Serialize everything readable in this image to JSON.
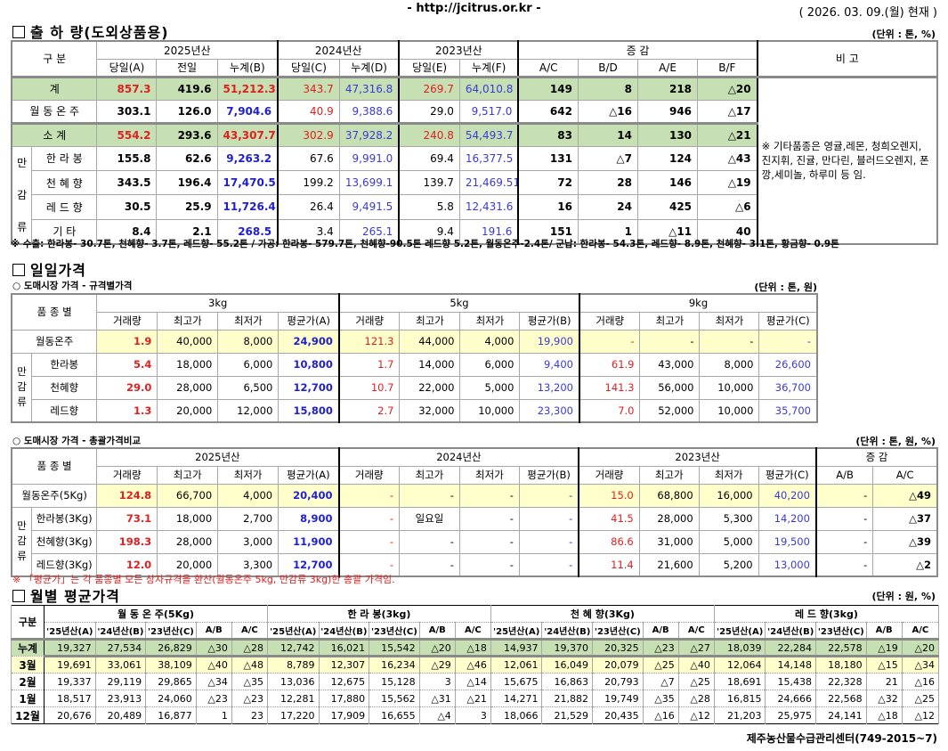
{
  "header": {
    "url": "- http://jcitrus.or.kr -",
    "date": "( 2026. 03. 09.(월) 현재 )"
  },
  "shipment": {
    "title": "출 하 량(도외상품용)",
    "unit": "(단위 : 톤, %)",
    "col_gubun": "구     분",
    "years": [
      "2025년산",
      "2024년산",
      "2023년산"
    ],
    "change_header": "증     감",
    "remarks_header": "비 고",
    "subheaders": [
      "당일(A)",
      "전일",
      "누계(B)",
      "당일(C)",
      "누계(D)",
      "당일(E)",
      "누계(F)",
      "A/C",
      "B/D",
      "A/E",
      "B/F"
    ],
    "side_group": "만감류",
    "rows": [
      {
        "label": "계",
        "values": [
          "857.3",
          "419.6",
          "51,212.3",
          "343.7",
          "47,316.8",
          "269.7",
          "64,010.8",
          "149",
          "8",
          "218",
          "△20"
        ]
      },
      {
        "label": "월 동 온 주",
        "values": [
          "303.1",
          "126.0",
          "7,904.6",
          "40.9",
          "9,388.6",
          "29.0",
          "9,517.0",
          "642",
          "△16",
          "946",
          "△17"
        ]
      },
      {
        "label": "소    계",
        "values": [
          "554.2",
          "293.6",
          "43,307.7",
          "302.9",
          "37,928.2",
          "240.8",
          "54,493.7",
          "83",
          "14",
          "130",
          "△21"
        ]
      },
      {
        "label": "한 라 봉",
        "values": [
          "155.8",
          "62.6",
          "9,263.2",
          "67.6",
          "9,991.0",
          "69.4",
          "16,377.5",
          "131",
          "△7",
          "124",
          "△43"
        ]
      },
      {
        "label": "천 혜 향",
        "values": [
          "343.5",
          "196.4",
          "17,470.5",
          "199.2",
          "13,699.1",
          "139.7",
          "21,469.51",
          "72",
          "28",
          "146",
          "△19"
        ]
      },
      {
        "label": "레 드 향",
        "values": [
          "30.5",
          "25.9",
          "11,726.4",
          "26.4",
          "9,491.5",
          "5.8",
          "12,431.6",
          "16",
          "24",
          "425",
          "△6"
        ]
      },
      {
        "label": "기      타",
        "values": [
          "8.4",
          "2.1",
          "268.5",
          "3.4",
          "265.1",
          "9.4",
          "191.6",
          "151",
          "1",
          "△11",
          "40"
        ]
      }
    ],
    "remarks": "※ 기타품종은 영귤,레몬, 청희오렌지, 진지휘, 진귤, 만다린, 블러드오렌지, 폰깡,세미놀, 하루미 등 임.",
    "footnote": "※ 수출: 한라봉- 30.7톤, 천혜향- 3.7톤, 레드향- 55.2톤 / 가공: 한라봉- 579.7톤, 천혜향-90.5톤 레드향 5.2톤, 월동온주-2.4톤/  군납: 한라봉- 54.3톤, 레드향- 8.9톤, 천혜향- 3.1톤, 황금향- 0.9톤"
  },
  "daily": {
    "title": "일일가격",
    "spec_table": {
      "subtitle": "○ 도매시장 가격 - 규격별가격",
      "unit": "(단위 : 톤, 원)",
      "col_variety": "품 종 별",
      "groups": [
        "3kg",
        "5kg",
        "9kg"
      ],
      "subheaders": [
        "거래량",
        "최고가",
        "최저가",
        "평균가(A)",
        "거래량",
        "최고가",
        "최저가",
        "평균가(B)",
        "거래량",
        "최고가",
        "최저가",
        "평균가(C)"
      ],
      "side_group": "만감류",
      "rows": [
        {
          "label": "월동온주",
          "values": [
            "1.9",
            "40,000",
            "8,000",
            "24,900",
            "121.3",
            "44,000",
            "4,000",
            "19,900",
            "-",
            "-",
            "-",
            "-"
          ]
        },
        {
          "label": "한라봉",
          "values": [
            "5.4",
            "18,000",
            "6,000",
            "10,800",
            "1.7",
            "14,000",
            "6,000",
            "9,400",
            "61.9",
            "43,000",
            "8,000",
            "26,600"
          ]
        },
        {
          "label": "천혜향",
          "values": [
            "29.0",
            "28,000",
            "6,500",
            "12,700",
            "10.7",
            "22,000",
            "5,000",
            "13,200",
            "141.3",
            "56,000",
            "10,000",
            "36,700"
          ]
        },
        {
          "label": "레드향",
          "values": [
            "1.3",
            "20,000",
            "12,000",
            "15,800",
            "2.7",
            "32,000",
            "10,000",
            "23,300",
            "7.0",
            "52,000",
            "10,000",
            "35,700"
          ]
        }
      ]
    },
    "total_table": {
      "subtitle": "○ 도매시장 가격 - 총괄가격비교",
      "unit": "(단위 : 톤, 원, %)",
      "col_variety": "품 종 별",
      "groups": [
        "2025년산",
        "2024년산",
        "2023년산",
        "증    감"
      ],
      "subheaders": [
        "거래량",
        "최고가",
        "최저가",
        "평균가(A)",
        "거래량",
        "최고가",
        "최저가",
        "평균가(B)",
        "거래량",
        "최고가",
        "최저가",
        "평균가(C)",
        "A/B",
        "A/C"
      ],
      "side_group": "만감류",
      "rows": [
        {
          "label": "월동온주(5Kg)",
          "values": [
            "124.8",
            "66,700",
            "4,000",
            "20,400",
            "-",
            "-",
            "-",
            "-",
            "15.0",
            "68,800",
            "16,000",
            "40,200",
            "-",
            "△49"
          ]
        },
        {
          "label": "한라봉(3Kg)",
          "values": [
            "73.1",
            "18,000",
            "2,700",
            "8,900",
            "-",
            "일요일",
            "-",
            "-",
            "41.5",
            "28,000",
            "5,300",
            "14,200",
            "-",
            "△37"
          ]
        },
        {
          "label": "천혜향(3Kg)",
          "values": [
            "198.3",
            "28,000",
            "3,000",
            "11,900",
            "-",
            "-",
            "-",
            "-",
            "86.6",
            "31,000",
            "5,000",
            "19,500",
            "-",
            "△39"
          ]
        },
        {
          "label": "레드향(3Kg)",
          "values": [
            "12.0",
            "20,000",
            "3,300",
            "12,700",
            "-",
            "-",
            "-",
            "-",
            "11.4",
            "21,600",
            "5,200",
            "13,000",
            "-",
            "△2"
          ]
        }
      ],
      "footnote": "※  「평균가」는 각 품종별 모든 상자규격을 환산(월동온주 5kg, 만감류 3kg)한 총괄 가격임."
    }
  },
  "monthly": {
    "title": "월별 평균가격",
    "unit": "(단위 : 원, %)",
    "col_gubun": "구분",
    "groups": [
      "월 동 온 주(5Kg)",
      "한  라  봉(3kg)",
      "천 혜 향(3Kg)",
      "레 드 향(3kg)"
    ],
    "subheaders": [
      "'25년산(A)",
      "'24년산(B)",
      "'23년산(C)",
      "A/B",
      "A/C"
    ],
    "rows": [
      {
        "label": "누계",
        "values": [
          "19,327",
          "27,534",
          "26,829",
          "△30",
          "△28",
          "12,742",
          "16,021",
          "15,542",
          "△20",
          "△18",
          "14,937",
          "19,370",
          "20,325",
          "△23",
          "△27",
          "18,039",
          "22,284",
          "22,578",
          "△19",
          "△20"
        ]
      },
      {
        "label": "3월",
        "values": [
          "19,691",
          "33,061",
          "38,109",
          "△40",
          "△48",
          "8,789",
          "12,307",
          "16,234",
          "△29",
          "△46",
          "12,061",
          "16,049",
          "20,079",
          "△25",
          "△40",
          "12,064",
          "14,148",
          "18,180",
          "△15",
          "△34"
        ]
      },
      {
        "label": "2월",
        "values": [
          "19,337",
          "29,119",
          "29,865",
          "△34",
          "△35",
          "13,036",
          "12,675",
          "15,128",
          "3",
          "△14",
          "15,675",
          "16,863",
          "20,793",
          "△7",
          "△25",
          "18,691",
          "15,438",
          "22,328",
          "21",
          "△16"
        ]
      },
      {
        "label": "1월",
        "values": [
          "18,517",
          "23,913",
          "24,060",
          "△23",
          "△23",
          "12,281",
          "17,880",
          "15,562",
          "△31",
          "△21",
          "14,271",
          "21,882",
          "19,749",
          "△35",
          "△28",
          "16,815",
          "24,666",
          "22,568",
          "△32",
          "△25"
        ]
      },
      {
        "label": "12월",
        "values": [
          "20,676",
          "20,489",
          "16,877",
          "1",
          "23",
          "17,220",
          "17,909",
          "16,655",
          "△4",
          "3",
          "18,066",
          "21,529",
          "20,435",
          "△16",
          "△12",
          "21,203",
          "25,975",
          "24,141",
          "△18",
          "△12"
        ]
      }
    ]
  },
  "footer": "제주농산물수급관리센터(749-2015~7)",
  "colors": {
    "red": "#e02020",
    "blue": "#2020d0",
    "green_row": "#c6e0b4",
    "yellow_row": "#ffffcc"
  }
}
